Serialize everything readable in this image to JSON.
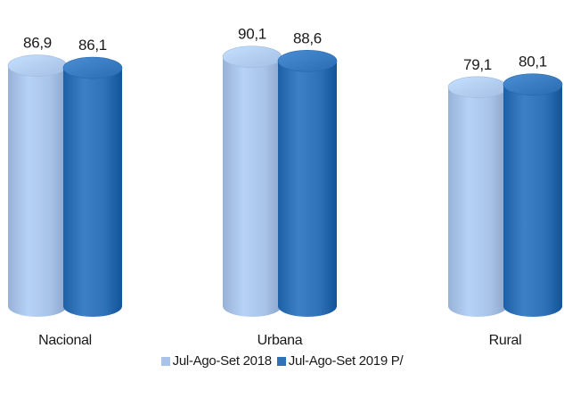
{
  "chart_data": {
    "type": "bar",
    "style": "3d-cylinder",
    "categories": [
      "Nacional",
      "Urbana",
      "Rural"
    ],
    "series": [
      {
        "name": "Jul-Ago-Set 2018",
        "values": [
          86.9,
          90.1,
          79.1
        ],
        "labels": [
          "86,9",
          "90,1",
          "79,1"
        ],
        "color": "#a9c4e8"
      },
      {
        "name": "Jul-Ago-Set 2019 P/",
        "values": [
          86.1,
          88.6,
          80.1
        ],
        "labels": [
          "86,1",
          "88,6",
          "80,1"
        ],
        "color": "#2f72b8"
      }
    ],
    "title": "",
    "xlabel": "",
    "ylabel": "",
    "ylim": [
      0,
      100
    ],
    "grid": false,
    "legend": "bottom-center"
  }
}
